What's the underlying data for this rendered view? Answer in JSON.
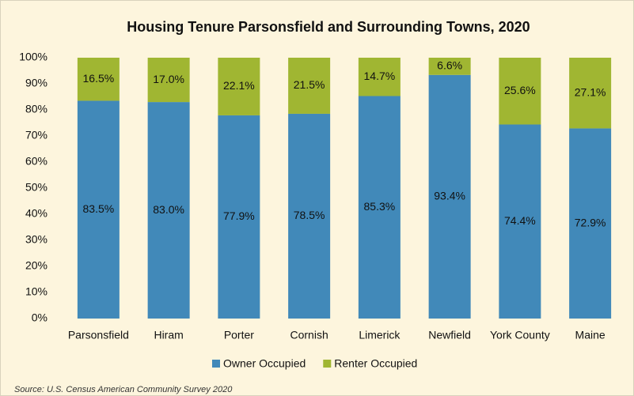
{
  "chart_data": {
    "type": "stacked_bar",
    "title": "Housing Tenure Parsonsfield and Surrounding Towns, 2020",
    "categories": [
      "Parsonsfield",
      "Hiram",
      "Porter",
      "Cornish",
      "Limerick",
      "Newfield",
      "York County",
      "Maine"
    ],
    "series": [
      {
        "name": "Owner Occupied",
        "color": "#4189b9",
        "values": [
          83.5,
          83.0,
          77.9,
          78.5,
          85.3,
          93.4,
          74.4,
          72.9
        ],
        "value_labels": [
          "83.5%",
          "83.0%",
          "77.9%",
          "78.5%",
          "85.3%",
          "93.4%",
          "74.4%",
          "72.9%"
        ]
      },
      {
        "name": "Renter Occupied",
        "color": "#a0b632",
        "values": [
          16.5,
          17.0,
          22.1,
          21.5,
          14.7,
          6.6,
          25.6,
          27.1
        ],
        "value_labels": [
          "16.5%",
          "17.0%",
          "22.1%",
          "21.5%",
          "14.7%",
          "6.6%",
          "25.6%",
          "27.1%"
        ]
      }
    ],
    "ylim": [
      0,
      100
    ],
    "yticks": [
      {
        "value": 0,
        "label": "0%"
      },
      {
        "value": 10,
        "label": "10%"
      },
      {
        "value": 20,
        "label": "20%"
      },
      {
        "value": 30,
        "label": "30%"
      },
      {
        "value": 40,
        "label": "40%"
      },
      {
        "value": 50,
        "label": "50%"
      },
      {
        "value": 60,
        "label": "60%"
      },
      {
        "value": 70,
        "label": "70%"
      },
      {
        "value": 80,
        "label": "80%"
      },
      {
        "value": 90,
        "label": "90%"
      },
      {
        "value": 100,
        "label": "100%"
      }
    ],
    "legend": "bottom",
    "source": "Source: U.S. Census American Community Survey 2020"
  }
}
